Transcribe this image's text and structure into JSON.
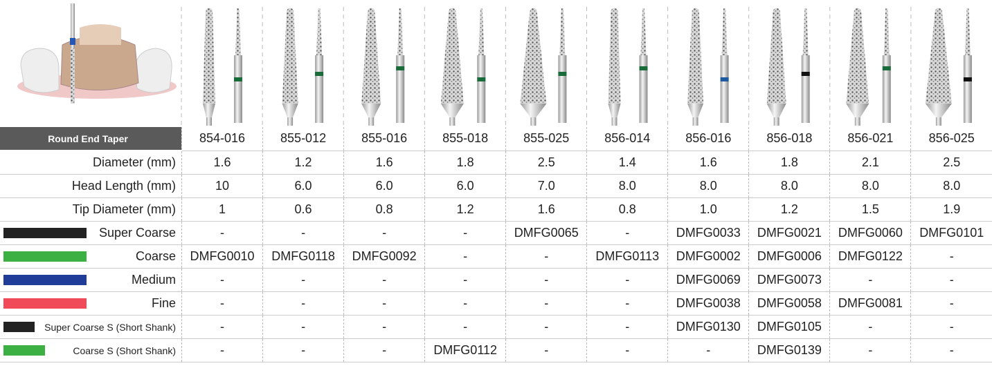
{
  "table": {
    "header": [
      "Round End Taper",
      "854-016",
      "855-012",
      "855-016",
      "855-018",
      "855-025",
      "856-014",
      "856-016",
      "856-018",
      "856-021",
      "856-025"
    ],
    "rows": [
      [
        "Diameter (mm)",
        "1.6",
        "1.2",
        "1.6",
        "1.8",
        "2.5",
        "1.4",
        "1.6",
        "1.8",
        "2.1",
        "2.5"
      ],
      [
        "Head Length (mm)",
        "10",
        "6.0",
        "6.0",
        "6.0",
        "7.0",
        "8.0",
        "8.0",
        "8.0",
        "8.0",
        "8.0"
      ],
      [
        "Tip Diameter (mm)",
        "1",
        "0.6",
        "0.8",
        "1.2",
        "1.6",
        "0.8",
        "1.0",
        "1.2",
        "1.5",
        "1.9"
      ],
      [
        "Super Coarse",
        "-",
        "-",
        "-",
        "-",
        "DMFG0065",
        "-",
        "DMFG0033",
        "DMFG0021",
        "DMFG0060",
        "DMFG0101"
      ],
      [
        "Coarse",
        "DMFG0010",
        "DMFG0118",
        "DMFG0092",
        "-",
        "-",
        "DMFG0113",
        "DMFG0002",
        "DMFG0006",
        "DMFG0122",
        "-"
      ],
      [
        "Medium",
        "-",
        "-",
        "-",
        "-",
        "-",
        "-",
        "DMFG0069",
        "DMFG0073",
        "-",
        "-"
      ],
      [
        "Fine",
        "-",
        "-",
        "-",
        "-",
        "-",
        "-",
        "DMFG0038",
        "DMFG0058",
        "DMFG0081",
        "-"
      ],
      [
        "Super Coarse S (Short Shank)",
        "-",
        "-",
        "-",
        "-",
        "-",
        "-",
        "DMFG0130",
        "DMFG0105",
        "-",
        "-"
      ],
      [
        "Coarse S (Short Shank)",
        "-",
        "-",
        "-",
        "DMFG0112",
        "-",
        "-",
        "-",
        "DMFG0139",
        "-",
        "-"
      ]
    ]
  }
}
